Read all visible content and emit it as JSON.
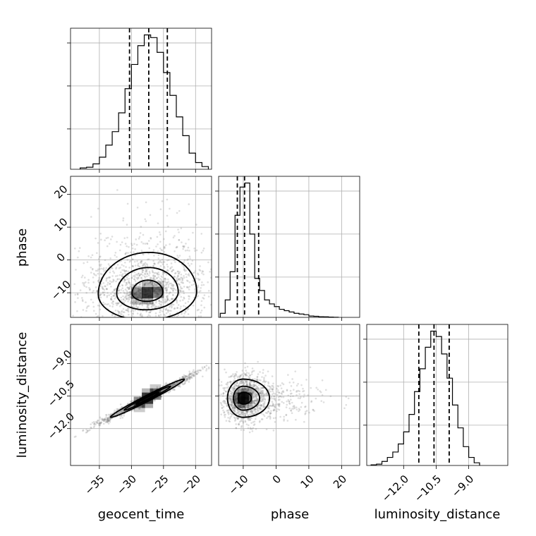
{
  "chart_data": {
    "type": "corner",
    "parameters": [
      "geocent_time",
      "phase",
      "luminosity_distance"
    ],
    "axis_labels": {
      "x": [
        "geocent_time",
        "phase",
        "luminosity_distance"
      ],
      "y": [
        "",
        "phase",
        "luminosity_distance"
      ]
    },
    "ranges": {
      "geocent_time": [
        -39.5,
        -17.5
      ],
      "phase": [
        -17.5,
        25.5
      ],
      "luminosity_distance": [
        -13.7,
        -7.2
      ]
    },
    "ticks": {
      "geocent_time": [
        -35,
        -30,
        -25,
        -20
      ],
      "phase": [
        -10,
        0,
        10,
        20
      ],
      "luminosity_distance": [
        -12.0,
        -10.5,
        -9.0
      ]
    },
    "tick_labels": {
      "geocent_time": [
        "−35",
        "−30",
        "−25",
        "−20"
      ],
      "phase": [
        "−10",
        "0",
        "10",
        "20"
      ],
      "luminosity_distance": [
        "−12.0",
        "−10.5",
        "−9.0"
      ]
    },
    "grid": true,
    "histograms": {
      "geocent_time": {
        "edges": [
          -38,
          -37,
          -36,
          -35,
          -34,
          -33,
          -32,
          -31,
          -30,
          -29,
          -28,
          -27,
          -26,
          -25,
          -24,
          -23,
          -22,
          -21,
          -20,
          -19,
          -18
        ],
        "counts": [
          0.01,
          0.015,
          0.04,
          0.09,
          0.18,
          0.28,
          0.42,
          0.6,
          0.78,
          0.92,
          1.0,
          0.98,
          0.87,
          0.72,
          0.55,
          0.39,
          0.25,
          0.12,
          0.05,
          0.02
        ],
        "quantiles": [
          -30.3,
          -27.3,
          -24.4
        ]
      },
      "phase": {
        "edges": [
          -17,
          -15.5,
          -14,
          -12.5,
          -11,
          -9.5,
          -8,
          -6.5,
          -5,
          -3.5,
          -2,
          -0.5,
          1,
          2.5,
          4,
          5.5,
          7,
          8.5,
          10,
          11.5,
          13,
          14.5,
          16,
          17.5,
          19
        ],
        "counts": [
          0.03,
          0.13,
          0.34,
          0.76,
          0.97,
          1.0,
          0.62,
          0.29,
          0.2,
          0.13,
          0.1,
          0.08,
          0.06,
          0.05,
          0.04,
          0.03,
          0.025,
          0.02,
          0.01,
          0.008,
          0.005,
          0.004,
          0.002,
          0.001
        ],
        "quantiles": [
          -11.8,
          -9.6,
          -5.3
        ]
      },
      "luminosity_distance": {
        "edges": [
          -13.5,
          -13.25,
          -13.0,
          -12.75,
          -12.5,
          -12.25,
          -12.0,
          -11.75,
          -11.5,
          -11.25,
          -11.0,
          -10.75,
          -10.5,
          -10.25,
          -10.0,
          -9.75,
          -9.5,
          -9.25,
          -9.0,
          -8.75,
          -8.5
        ],
        "counts": [
          0.005,
          0.01,
          0.03,
          0.06,
          0.1,
          0.16,
          0.25,
          0.38,
          0.55,
          0.72,
          0.88,
          1.0,
          0.96,
          0.83,
          0.65,
          0.45,
          0.28,
          0.14,
          0.06,
          0.02
        ],
        "quantiles": [
          -11.3,
          -10.6,
          -9.9
        ]
      }
    },
    "density_panels": [
      {
        "x": "geocent_time",
        "y": "phase",
        "mode": [
          -27.5,
          -10.0
        ],
        "spread": [
          4.8,
          5.2
        ],
        "correlation": 0.05,
        "contour_levels": [
          0.5,
          1.0,
          1.6
        ]
      },
      {
        "x": "geocent_time",
        "y": "luminosity_distance",
        "mode": [
          -27.5,
          -10.6
        ],
        "spread": [
          3.6,
          0.55
        ],
        "correlation": 0.985,
        "contour_levels": [
          0.5,
          1.0,
          1.6
        ]
      },
      {
        "x": "phase",
        "y": "luminosity_distance",
        "mode": [
          -10.0,
          -10.6
        ],
        "spread": [
          3.0,
          0.55
        ],
        "correlation": 0.0,
        "contour_levels": [
          0.5,
          1.0,
          1.6
        ]
      }
    ],
    "colors": {
      "line": "#000000",
      "grid": "#b0b0b0",
      "points": "#808080"
    }
  }
}
